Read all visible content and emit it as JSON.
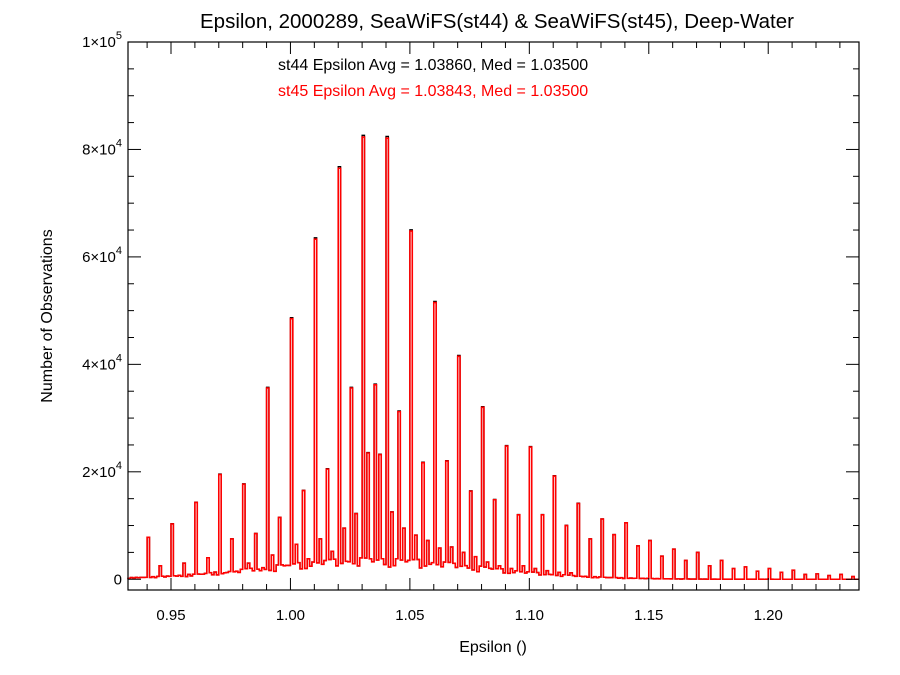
{
  "chart_data": {
    "type": "histogram",
    "title": "Epsilon, 2000289, SeaWiFS(st44) & SeaWiFS(st45), Deep-Water",
    "xlabel": "Epsilon ()",
    "ylabel": "Number of Observations",
    "xlim": [
      0.932,
      1.238
    ],
    "ylim": [
      -2000,
      100000
    ],
    "x_ticks": [
      "0.95",
      "1.00",
      "1.05",
      "1.10",
      "1.15",
      "1.20"
    ],
    "x_tick_values": [
      0.95,
      1.0,
      1.05,
      1.1,
      1.15,
      1.2
    ],
    "y_ticks": [
      {
        "value": 0,
        "base": "0",
        "exp": ""
      },
      {
        "value": 20000,
        "base": "2×10",
        "exp": "4"
      },
      {
        "value": 40000,
        "base": "4×10",
        "exp": "4"
      },
      {
        "value": 60000,
        "base": "6×10",
        "exp": "4"
      },
      {
        "value": 80000,
        "base": "8×10",
        "exp": "4"
      },
      {
        "value": 100000,
        "base": "1×10",
        "exp": "5"
      }
    ],
    "annotations": [
      {
        "text": "st44 Epsilon Avg = 1.03860, Med = 1.03500",
        "color": "#000000"
      },
      {
        "text": "st45 Epsilon Avg = 1.03843, Med = 1.03500",
        "color": "#ff0000"
      }
    ],
    "series": [
      {
        "name": "st44",
        "color": "#000000"
      },
      {
        "name": "st45",
        "color": "#ff0000"
      }
    ],
    "bin_width": 0.001,
    "x_start": 0.932,
    "spikes": [
      [
        0.94,
        7800
      ],
      [
        0.95,
        10300
      ],
      [
        0.96,
        14300
      ],
      [
        0.97,
        19500
      ],
      [
        0.98,
        17700
      ],
      [
        0.99,
        35600
      ],
      [
        1.0,
        48500
      ],
      [
        1.01,
        63300
      ],
      [
        1.02,
        76500
      ],
      [
        1.03,
        82300
      ],
      [
        1.04,
        82100
      ],
      [
        1.05,
        64800
      ],
      [
        1.06,
        51500
      ],
      [
        1.07,
        41500
      ],
      [
        1.08,
        32000
      ],
      [
        1.09,
        24800
      ],
      [
        1.1,
        24600
      ],
      [
        1.11,
        19200
      ],
      [
        1.12,
        14100
      ],
      [
        1.13,
        11200
      ],
      [
        1.14,
        10500
      ],
      [
        1.15,
        7200
      ],
      [
        1.16,
        5600
      ],
      [
        1.17,
        5000
      ],
      [
        1.18,
        3500
      ],
      [
        1.19,
        2300
      ],
      [
        1.2,
        2000
      ],
      [
        1.21,
        1700
      ],
      [
        1.22,
        1000
      ],
      [
        1.23,
        900
      ]
    ],
    "half_spikes": [
      [
        0.945,
        2500
      ],
      [
        0.955,
        3000
      ],
      [
        0.965,
        4000
      ],
      [
        0.975,
        7500
      ],
      [
        0.985,
        8500
      ],
      [
        0.995,
        11500
      ],
      [
        1.005,
        16500
      ],
      [
        1.015,
        20500
      ],
      [
        1.025,
        35600
      ],
      [
        1.035,
        36200
      ],
      [
        1.045,
        31200
      ],
      [
        1.055,
        21700
      ],
      [
        1.065,
        22000
      ],
      [
        1.075,
        16400
      ],
      [
        1.085,
        14800
      ],
      [
        1.095,
        12000
      ],
      [
        1.105,
        12000
      ],
      [
        1.115,
        10000
      ],
      [
        1.125,
        7500
      ],
      [
        1.135,
        8300
      ],
      [
        1.145,
        6200
      ],
      [
        1.155,
        4300
      ],
      [
        1.165,
        3500
      ],
      [
        1.175,
        2500
      ],
      [
        1.185,
        2000
      ],
      [
        1.195,
        1500
      ],
      [
        1.205,
        1300
      ],
      [
        1.215,
        900
      ],
      [
        1.225,
        700
      ],
      [
        1.235,
        500
      ]
    ],
    "quarter_spikes": [
      [
        0.9725,
        1200
      ],
      [
        0.9775,
        1500
      ],
      [
        0.9825,
        3000
      ],
      [
        0.9875,
        1600
      ],
      [
        0.9925,
        4500
      ],
      [
        0.9975,
        2500
      ],
      [
        1.0025,
        6500
      ],
      [
        1.0075,
        3800
      ],
      [
        1.0125,
        7500
      ],
      [
        1.0175,
        5200
      ],
      [
        1.0225,
        9500
      ],
      [
        1.0275,
        12200
      ],
      [
        1.0325,
        23500
      ],
      [
        1.0375,
        23200
      ],
      [
        1.0425,
        12500
      ],
      [
        1.0475,
        9500
      ],
      [
        1.0525,
        8200
      ],
      [
        1.0575,
        7200
      ],
      [
        1.0625,
        5800
      ],
      [
        1.0675,
        6000
      ],
      [
        1.0725,
        5000
      ],
      [
        1.0775,
        4200
      ],
      [
        1.0825,
        3200
      ],
      [
        1.0875,
        2500
      ],
      [
        1.0925,
        2000
      ],
      [
        1.0975,
        2500
      ],
      [
        1.1025,
        2000
      ],
      [
        1.1075,
        1600
      ],
      [
        1.1125,
        1300
      ],
      [
        1.1175,
        1200
      ]
    ],
    "background": {
      "center": 1.035,
      "peak": 4000,
      "sigma": 0.045
    }
  }
}
